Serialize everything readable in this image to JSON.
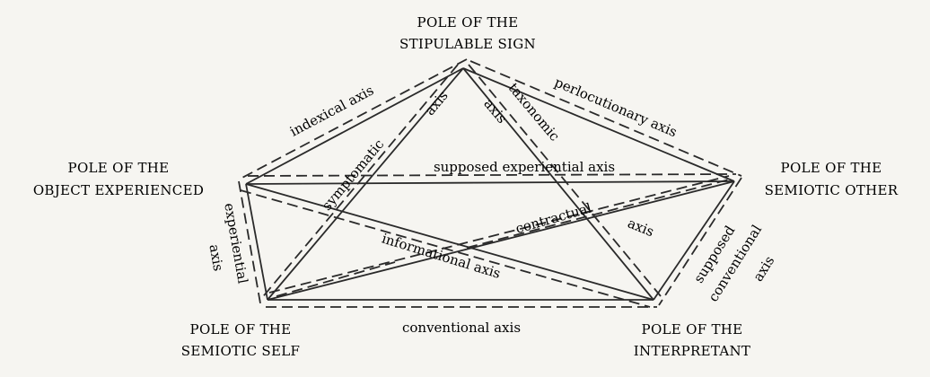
{
  "poles": {
    "sign": {
      "line1": "POLE OF THE",
      "line2": "STIPULABLE SIGN"
    },
    "object": {
      "line1": "POLE OF THE",
      "line2": "OBJECT EXPERIENCED"
    },
    "other": {
      "line1": "POLE OF THE",
      "line2": "SEMIOTIC OTHER"
    },
    "self": {
      "line1": "POLE OF THE",
      "line2": "SEMIOTIC SELF"
    },
    "interpretant": {
      "line1": "POLE OF THE",
      "line2": "INTERPRETANT"
    }
  },
  "axes": {
    "indexical": "indexical axis",
    "perlocutionary": "perlocutionary axis",
    "symptomatic": "symptomatic",
    "symptomatic_axis": "axis",
    "taxonomic": "taxonomic",
    "taxonomic_axis": "axis",
    "supposed_experiential": "supposed experiential axis",
    "experiential": "experiential",
    "experiential_axis": "axis",
    "contractual": "contractual",
    "contractual_axis": "axis",
    "informational": "informational axis",
    "conventional": "conventional axis",
    "supposed_conventional_1": "supposed",
    "supposed_conventional_2": "conventional",
    "supposed_conventional_3": "axis"
  }
}
